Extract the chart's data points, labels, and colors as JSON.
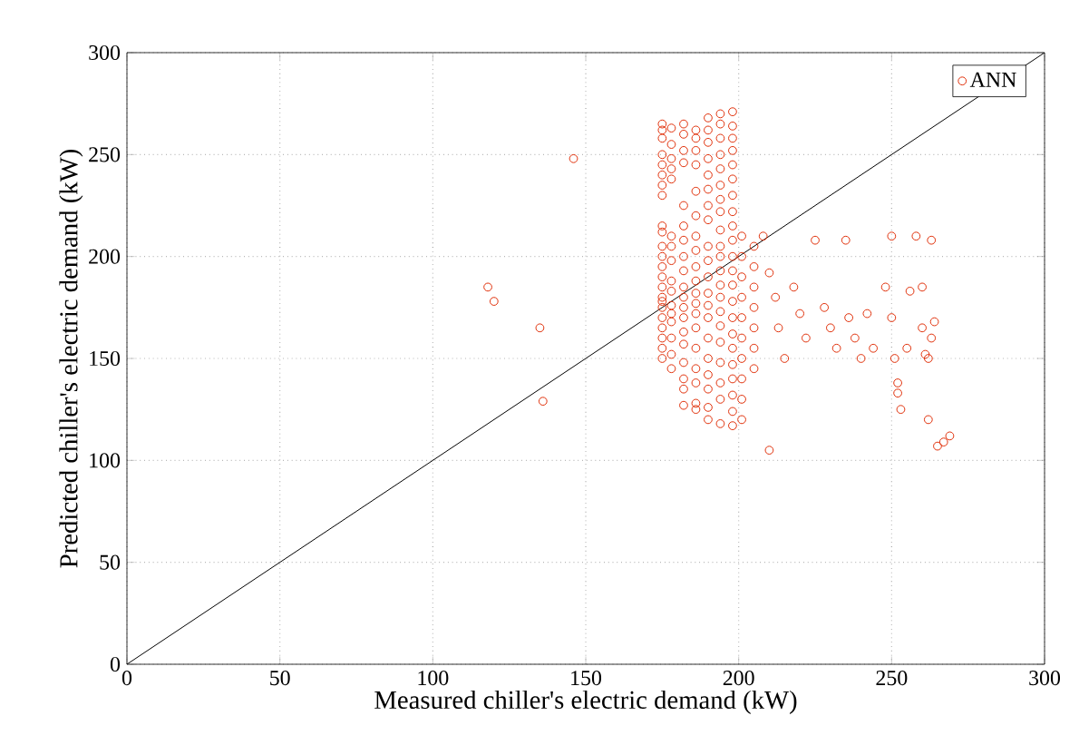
{
  "chart_data": {
    "type": "scatter",
    "xlabel": "Measured chiller's electric demand (kW)",
    "ylabel": "Predicted chiller's electric demand (kW)",
    "xlim": [
      0,
      300
    ],
    "ylim": [
      0,
      300
    ],
    "xticks": [
      0,
      50,
      100,
      150,
      200,
      250,
      300
    ],
    "yticks": [
      0,
      50,
      100,
      150,
      200,
      250,
      300
    ],
    "grid": true,
    "legend": "top right",
    "series": [
      {
        "type": "line",
        "color": "#000000",
        "line_style": "solid",
        "marker": "none",
        "x": [
          0,
          300
        ],
        "values": [
          0,
          300
        ]
      },
      {
        "name": "ANN",
        "color": "#e0300a",
        "marker": "circle",
        "x": [
          118,
          120,
          135,
          136,
          146,
          175,
          175,
          175,
          175,
          175,
          175,
          175,
          175,
          175,
          175,
          175,
          175,
          175,
          175,
          175,
          175,
          175,
          175,
          175,
          175,
          175,
          175,
          175,
          178,
          178,
          178,
          178,
          178,
          178,
          178,
          178,
          178,
          178,
          178,
          178,
          178,
          178,
          178,
          178,
          182,
          182,
          182,
          182,
          182,
          182,
          182,
          182,
          182,
          182,
          182,
          182,
          182,
          182,
          182,
          182,
          182,
          182,
          182,
          186,
          186,
          186,
          186,
          186,
          186,
          186,
          186,
          186,
          186,
          186,
          186,
          186,
          186,
          186,
          186,
          186,
          186,
          186,
          190,
          190,
          190,
          190,
          190,
          190,
          190,
          190,
          190,
          190,
          190,
          190,
          190,
          190,
          190,
          190,
          190,
          190,
          190,
          190,
          194,
          194,
          194,
          194,
          194,
          194,
          194,
          194,
          194,
          194,
          194,
          194,
          194,
          194,
          194,
          194,
          194,
          194,
          194,
          194,
          194,
          198,
          198,
          198,
          198,
          198,
          198,
          198,
          198,
          198,
          198,
          198,
          198,
          198,
          198,
          198,
          198,
          198,
          198,
          198,
          198,
          198,
          198,
          201,
          201,
          201,
          201,
          201,
          201,
          201,
          201,
          201,
          201,
          205,
          205,
          205,
          205,
          205,
          205,
          205,
          208,
          210,
          212,
          213,
          215,
          210,
          218,
          220,
          222,
          225,
          228,
          230,
          232,
          235,
          236,
          238,
          240,
          242,
          244,
          248,
          250,
          250,
          251,
          252,
          252,
          253,
          255,
          256,
          258,
          260,
          260,
          261,
          262,
          263,
          264,
          263,
          262,
          265,
          267,
          269
        ],
        "values": [
          185,
          178,
          165,
          129,
          248,
          265,
          262,
          258,
          250,
          245,
          240,
          235,
          230,
          215,
          212,
          205,
          200,
          195,
          190,
          185,
          180,
          178,
          175,
          170,
          165,
          160,
          155,
          150,
          263,
          255,
          248,
          243,
          238,
          210,
          205,
          198,
          188,
          183,
          176,
          172,
          168,
          160,
          152,
          145,
          265,
          260,
          252,
          246,
          225,
          215,
          208,
          200,
          193,
          185,
          180,
          175,
          170,
          163,
          157,
          148,
          140,
          135,
          127,
          262,
          258,
          252,
          245,
          232,
          220,
          210,
          203,
          195,
          188,
          182,
          177,
          172,
          165,
          155,
          145,
          138,
          128,
          125,
          268,
          262,
          256,
          248,
          240,
          233,
          225,
          218,
          205,
          198,
          190,
          182,
          176,
          170,
          160,
          150,
          142,
          135,
          126,
          120,
          270,
          265,
          258,
          250,
          243,
          235,
          228,
          222,
          213,
          205,
          200,
          193,
          186,
          180,
          173,
          166,
          158,
          148,
          138,
          130,
          118,
          271,
          264,
          258,
          252,
          245,
          238,
          230,
          222,
          215,
          208,
          200,
          193,
          186,
          178,
          170,
          162,
          155,
          147,
          140,
          132,
          124,
          117,
          210,
          200,
          190,
          180,
          170,
          160,
          150,
          140,
          130,
          120,
          205,
          195,
          185,
          175,
          165,
          155,
          145,
          210,
          192,
          180,
          165,
          150,
          105,
          185,
          172,
          160,
          208,
          175,
          165,
          155,
          208,
          170,
          160,
          150,
          172,
          155,
          185,
          210,
          170,
          150,
          138,
          133,
          125,
          155,
          183,
          210,
          185,
          165,
          152,
          150,
          160,
          168,
          208,
          120,
          107,
          109,
          112
        ]
      }
    ]
  }
}
